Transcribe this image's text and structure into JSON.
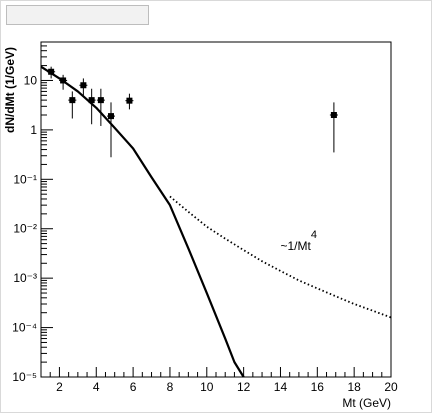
{
  "title_box": "",
  "chart_data": {
    "type": "scatter",
    "xlabel": "Mt (GeV)",
    "ylabel": "dN/dMt (1/GeV)",
    "xlim": [
      1.0,
      20.0
    ],
    "ylim": [
      1e-05,
      60
    ],
    "y_scale": "log",
    "grid": false,
    "x_ticks": [
      2,
      4,
      6,
      8,
      10,
      12,
      14,
      16,
      18,
      20
    ],
    "y_ticks": [
      {
        "value": 1e-05,
        "label": "10⁻⁵"
      },
      {
        "value": 0.0001,
        "label": "10⁻⁴"
      },
      {
        "value": 0.001,
        "label": "10⁻³"
      },
      {
        "value": 0.01,
        "label": "10⁻²"
      },
      {
        "value": 0.1,
        "label": "10⁻¹"
      },
      {
        "value": 1,
        "label": "1"
      },
      {
        "value": 10,
        "label": "10"
      }
    ],
    "points": [
      {
        "x": 1.55,
        "y": 15,
        "ylo": 11,
        "yhi": 19
      },
      {
        "x": 2.2,
        "y": 10,
        "ylo": 6.5,
        "yhi": 13
      },
      {
        "x": 2.7,
        "y": 4.0,
        "ylo": 1.7,
        "yhi": 6.0
      },
      {
        "x": 3.3,
        "y": 8.0,
        "ylo": 5.0,
        "yhi": 11
      },
      {
        "x": 3.75,
        "y": 4.0,
        "ylo": 1.3,
        "yhi": 6.8
      },
      {
        "x": 4.25,
        "y": 4.0,
        "ylo": 1.2,
        "yhi": 6.8
      },
      {
        "x": 4.8,
        "y": 1.9,
        "ylo": 0.28,
        "yhi": 3.6
      },
      {
        "x": 5.8,
        "y": 3.9,
        "ylo": 2.6,
        "yhi": 5.4
      },
      {
        "x": 16.9,
        "y": 2.0,
        "ylo": 0.35,
        "yhi": 3.6
      }
    ],
    "series": [
      {
        "style": "solid",
        "x": [
          1.0,
          2.0,
          3.0,
          4.0,
          5.0,
          6.0,
          7.0,
          8.0,
          9.0,
          10.0,
          11.0,
          11.5,
          12.0
        ],
        "y": [
          19,
          11,
          6.0,
          2.8,
          1.1,
          0.42,
          0.11,
          0.03,
          0.004,
          0.0005,
          6e-05,
          2e-05,
          1e-05
        ]
      },
      {
        "style": "dotted",
        "x": [
          8.0,
          9.0,
          10.0,
          11.0,
          12.0,
          13.0,
          14.0,
          15.0,
          16.0,
          17.0,
          18.0,
          19.0,
          20.0
        ],
        "y": [
          0.045,
          0.022,
          0.011,
          0.0063,
          0.0037,
          0.0022,
          0.0014,
          0.0009,
          0.00062,
          0.00043,
          0.0003,
          0.00022,
          0.00016
        ]
      }
    ],
    "annotations": [
      {
        "text": "~1/Mt",
        "sup": "4",
        "x": 14.0,
        "y": 0.0045
      }
    ]
  }
}
